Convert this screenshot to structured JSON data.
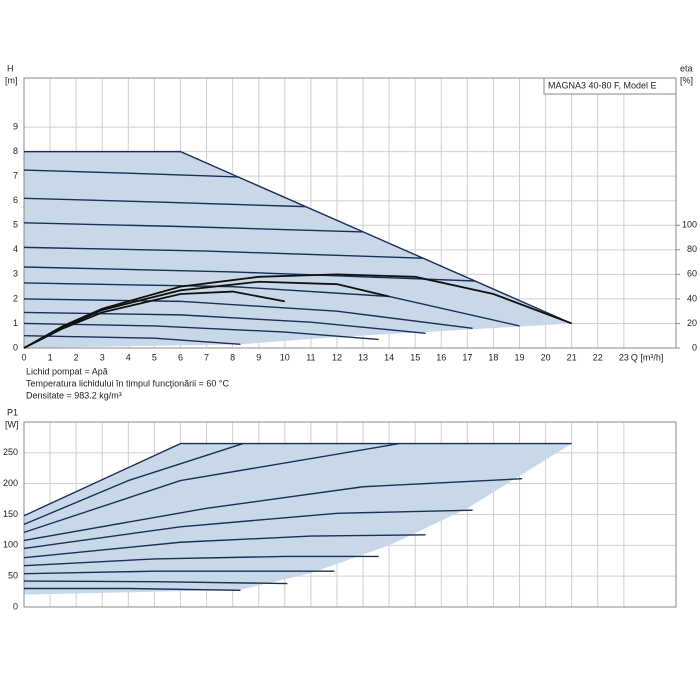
{
  "chart_data": [
    {
      "type": "line",
      "model_label": "MAGNA3 40-80 F, Model E",
      "ylabel": "H",
      "yunit": "[m]",
      "y2label": "eta",
      "y2unit": "[%]",
      "xlabel": "Q [m³/h]",
      "xlim": [
        0,
        25
      ],
      "xticks": [
        0,
        1,
        2,
        3,
        4,
        5,
        6,
        7,
        8,
        9,
        10,
        11,
        12,
        13,
        14,
        15,
        16,
        17,
        18,
        19,
        20,
        21,
        22,
        23
      ],
      "ylim": [
        0,
        11
      ],
      "yticks": [
        0,
        1,
        2,
        3,
        4,
        5,
        6,
        7,
        8,
        9
      ],
      "y2lim": [
        0,
        220
      ],
      "y2ticks": [
        0,
        20,
        40,
        60,
        80,
        100
      ],
      "grid": true,
      "notes": [
        "Lichid pompat = Apă",
        "Temperatura lichidului în timpul funcţionării = 60 °C",
        "Densitate = 983.2 kg/m³"
      ],
      "area": {
        "color": "#c9d8e8",
        "x": [
          0,
          6,
          21,
          17,
          12,
          8.3,
          0
        ],
        "values": [
          8,
          8,
          1,
          0.75,
          0.45,
          0.15,
          0
        ]
      },
      "series": [
        {
          "color": "#1a2e57",
          "x": [
            0,
            6,
            21
          ],
          "values": [
            8,
            8,
            1
          ]
        },
        {
          "color": "#1a2e57",
          "x": [
            0,
            4,
            8.2
          ],
          "values": [
            7.25,
            7.12,
            6.97
          ]
        },
        {
          "color": "#1a2e57",
          "x": [
            0,
            5,
            10.8
          ],
          "values": [
            6.1,
            5.95,
            5.76
          ]
        },
        {
          "color": "#1a2e57",
          "x": [
            0,
            6,
            13
          ],
          "values": [
            5.1,
            4.95,
            4.73
          ]
        },
        {
          "color": "#1a2e57",
          "x": [
            0,
            7,
            15.3
          ],
          "values": [
            4.1,
            3.95,
            3.66
          ]
        },
        {
          "color": "#1a2e57",
          "x": [
            0,
            8,
            17.3
          ],
          "values": [
            3.3,
            3.1,
            2.73
          ]
        },
        {
          "color": "#1a2e57",
          "x": [
            0,
            8,
            14,
            19
          ],
          "values": [
            2.65,
            2.5,
            2.1,
            0.9
          ]
        },
        {
          "color": "#1a2e57",
          "x": [
            0,
            6,
            12,
            17.2
          ],
          "values": [
            2,
            1.9,
            1.5,
            0.8
          ]
        },
        {
          "color": "#1a2e57",
          "x": [
            0,
            6,
            11,
            15.4
          ],
          "values": [
            1.45,
            1.35,
            1.05,
            0.6
          ]
        },
        {
          "color": "#1a2e57",
          "x": [
            0,
            5,
            10,
            13.6
          ],
          "values": [
            1,
            0.9,
            0.65,
            0.35
          ]
        },
        {
          "color": "#1a2e57",
          "x": [
            0,
            5,
            8.3
          ],
          "values": [
            0.5,
            0.4,
            0.15
          ]
        },
        {
          "color": "#111111",
          "axis": "y2",
          "x": [
            0,
            1.5,
            3,
            6,
            9,
            12,
            15,
            18,
            21
          ],
          "values": [
            0,
            18,
            32,
            50,
            58,
            60,
            58,
            44,
            20
          ]
        },
        {
          "color": "#111111",
          "axis": "y2",
          "x": [
            0,
            1.5,
            3,
            6,
            9,
            12,
            14
          ],
          "values": [
            0,
            17,
            31,
            47,
            54,
            52,
            42
          ]
        },
        {
          "color": "#111111",
          "axis": "y2",
          "x": [
            0,
            1.5,
            3,
            6,
            8,
            10
          ],
          "values": [
            0,
            16,
            29,
            44,
            46,
            38
          ]
        }
      ]
    },
    {
      "type": "line",
      "ylabel": "P1",
      "yunit": "[W]",
      "xlim": [
        0,
        25
      ],
      "ylim": [
        0,
        300
      ],
      "yticks": [
        0,
        50,
        100,
        150,
        200,
        250
      ],
      "grid": true,
      "area": {
        "color": "#c9d8e8",
        "x": [
          0,
          6,
          21,
          17,
          14,
          11,
          8.3,
          0
        ],
        "values": [
          148,
          265,
          265,
          160,
          100,
          55,
          28,
          20
        ]
      },
      "series": [
        {
          "color": "#1a2e57",
          "x": [
            0,
            6,
            21
          ],
          "values": [
            148,
            265,
            265
          ]
        },
        {
          "color": "#1a2e57",
          "x": [
            0,
            4,
            8.4
          ],
          "values": [
            134,
            205,
            265
          ]
        },
        {
          "color": "#1a2e57",
          "x": [
            0,
            6,
            14.4
          ],
          "values": [
            121,
            205,
            265
          ]
        },
        {
          "color": "#1a2e57",
          "x": [
            0,
            7,
            13,
            19.1
          ],
          "values": [
            108,
            160,
            195,
            208
          ]
        },
        {
          "color": "#1a2e57",
          "x": [
            0,
            6,
            12,
            17.2
          ],
          "values": [
            95,
            130,
            152,
            157
          ]
        },
        {
          "color": "#1a2e57",
          "x": [
            0,
            6,
            11,
            15.4
          ],
          "values": [
            80,
            105,
            115,
            117
          ]
        },
        {
          "color": "#1a2e57",
          "x": [
            0,
            5,
            10,
            13.6
          ],
          "values": [
            67,
            78,
            82,
            82
          ]
        },
        {
          "color": "#1a2e57",
          "x": [
            0,
            5,
            11.9
          ],
          "values": [
            54,
            58,
            58
          ]
        },
        {
          "color": "#1a2e57",
          "x": [
            0,
            5,
            10.1
          ],
          "values": [
            42,
            41,
            38
          ]
        },
        {
          "color": "#1a2e57",
          "x": [
            0,
            4,
            8.3
          ],
          "values": [
            30,
            30,
            27
          ]
        }
      ]
    }
  ]
}
